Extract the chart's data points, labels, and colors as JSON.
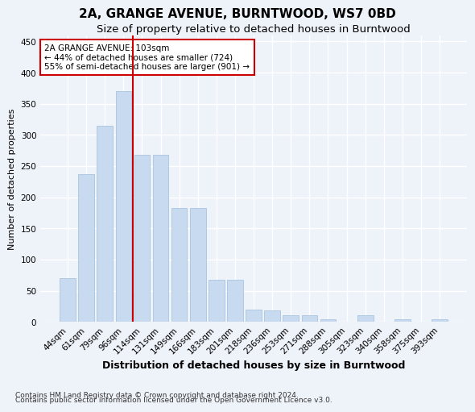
{
  "title": "2A, GRANGE AVENUE, BURNTWOOD, WS7 0BD",
  "subtitle": "Size of property relative to detached houses in Burntwood",
  "xlabel": "Distribution of detached houses by size in Burntwood",
  "ylabel": "Number of detached properties",
  "categories": [
    "44sqm",
    "61sqm",
    "79sqm",
    "96sqm",
    "114sqm",
    "131sqm",
    "149sqm",
    "166sqm",
    "183sqm",
    "201sqm",
    "218sqm",
    "236sqm",
    "253sqm",
    "271sqm",
    "288sqm",
    "305sqm",
    "323sqm",
    "340sqm",
    "358sqm",
    "375sqm",
    "393sqm"
  ],
  "values": [
    70,
    237,
    315,
    370,
    268,
    268,
    183,
    183,
    67,
    68,
    20,
    18,
    10,
    10,
    4,
    0,
    10,
    0,
    4,
    0,
    4
  ],
  "bar_color": "#c8daef",
  "bar_edge_color": "#aac4e0",
  "vline_color": "#cc0000",
  "vline_x_index": 3.5,
  "annotation_text": "2A GRANGE AVENUE: 103sqm\n← 44% of detached houses are smaller (724)\n55% of semi-detached houses are larger (901) →",
  "annotation_box_color": "#ffffff",
  "annotation_box_edge": "#cc0000",
  "ylim": [
    0,
    460
  ],
  "yticks": [
    0,
    50,
    100,
    150,
    200,
    250,
    300,
    350,
    400,
    450
  ],
  "footer_line1": "Contains HM Land Registry data © Crown copyright and database right 2024.",
  "footer_line2": "Contains public sector information licensed under the Open Government Licence v3.0.",
  "bg_color": "#eef2f9",
  "grid_color": "#ffffff",
  "title_fontsize": 11,
  "subtitle_fontsize": 9.5,
  "xlabel_fontsize": 9,
  "ylabel_fontsize": 8,
  "tick_fontsize": 7.5,
  "annotation_fontsize": 7.5,
  "footer_fontsize": 6.5
}
